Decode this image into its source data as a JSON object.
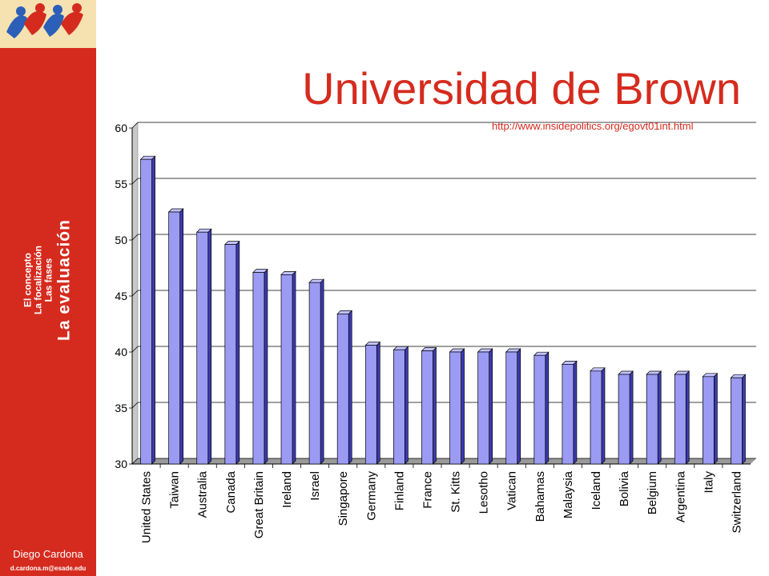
{
  "slide": {
    "title": "Universidad de Brown",
    "source_url": "http://www.insidepolitics.org/egovt01int.html"
  },
  "sidebar": {
    "nav_items": [
      "El concepto",
      "La focalización",
      "Las fases"
    ],
    "current_section": "La evaluación",
    "author": "Diego Cardona",
    "email": "d.cardona.m@esade.edu"
  },
  "colors": {
    "accent": "#d52b1e",
    "bar_front": "#9b9bf3",
    "bar_side": "#3b3bb0",
    "bar_top": "#c2c2ff"
  },
  "chart_data": {
    "type": "bar",
    "title": "",
    "xlabel": "",
    "ylabel": "",
    "ylim": [
      30,
      60
    ],
    "yticks": [
      30,
      35,
      40,
      45,
      50,
      55,
      60
    ],
    "grid": true,
    "categories": [
      "United States",
      "Taiwan",
      "Australia",
      "Canada",
      "Great Britain",
      "Ireland",
      "Israel",
      "Singapore",
      "Germany",
      "Finland",
      "France",
      "St. Kitts",
      "Lesotho",
      "Vatican",
      "Bahamas",
      "Malaysia",
      "Iceland",
      "Bolivia",
      "Belgium",
      "Argentina",
      "Italy",
      "Switzerland"
    ],
    "values": [
      57.2,
      52.5,
      50.7,
      49.6,
      47.1,
      46.9,
      46.2,
      43.4,
      40.6,
      40.2,
      40.1,
      40.0,
      40.0,
      40.0,
      39.7,
      38.9,
      38.3,
      38.0,
      38.0,
      38.0,
      37.8,
      37.7
    ]
  }
}
